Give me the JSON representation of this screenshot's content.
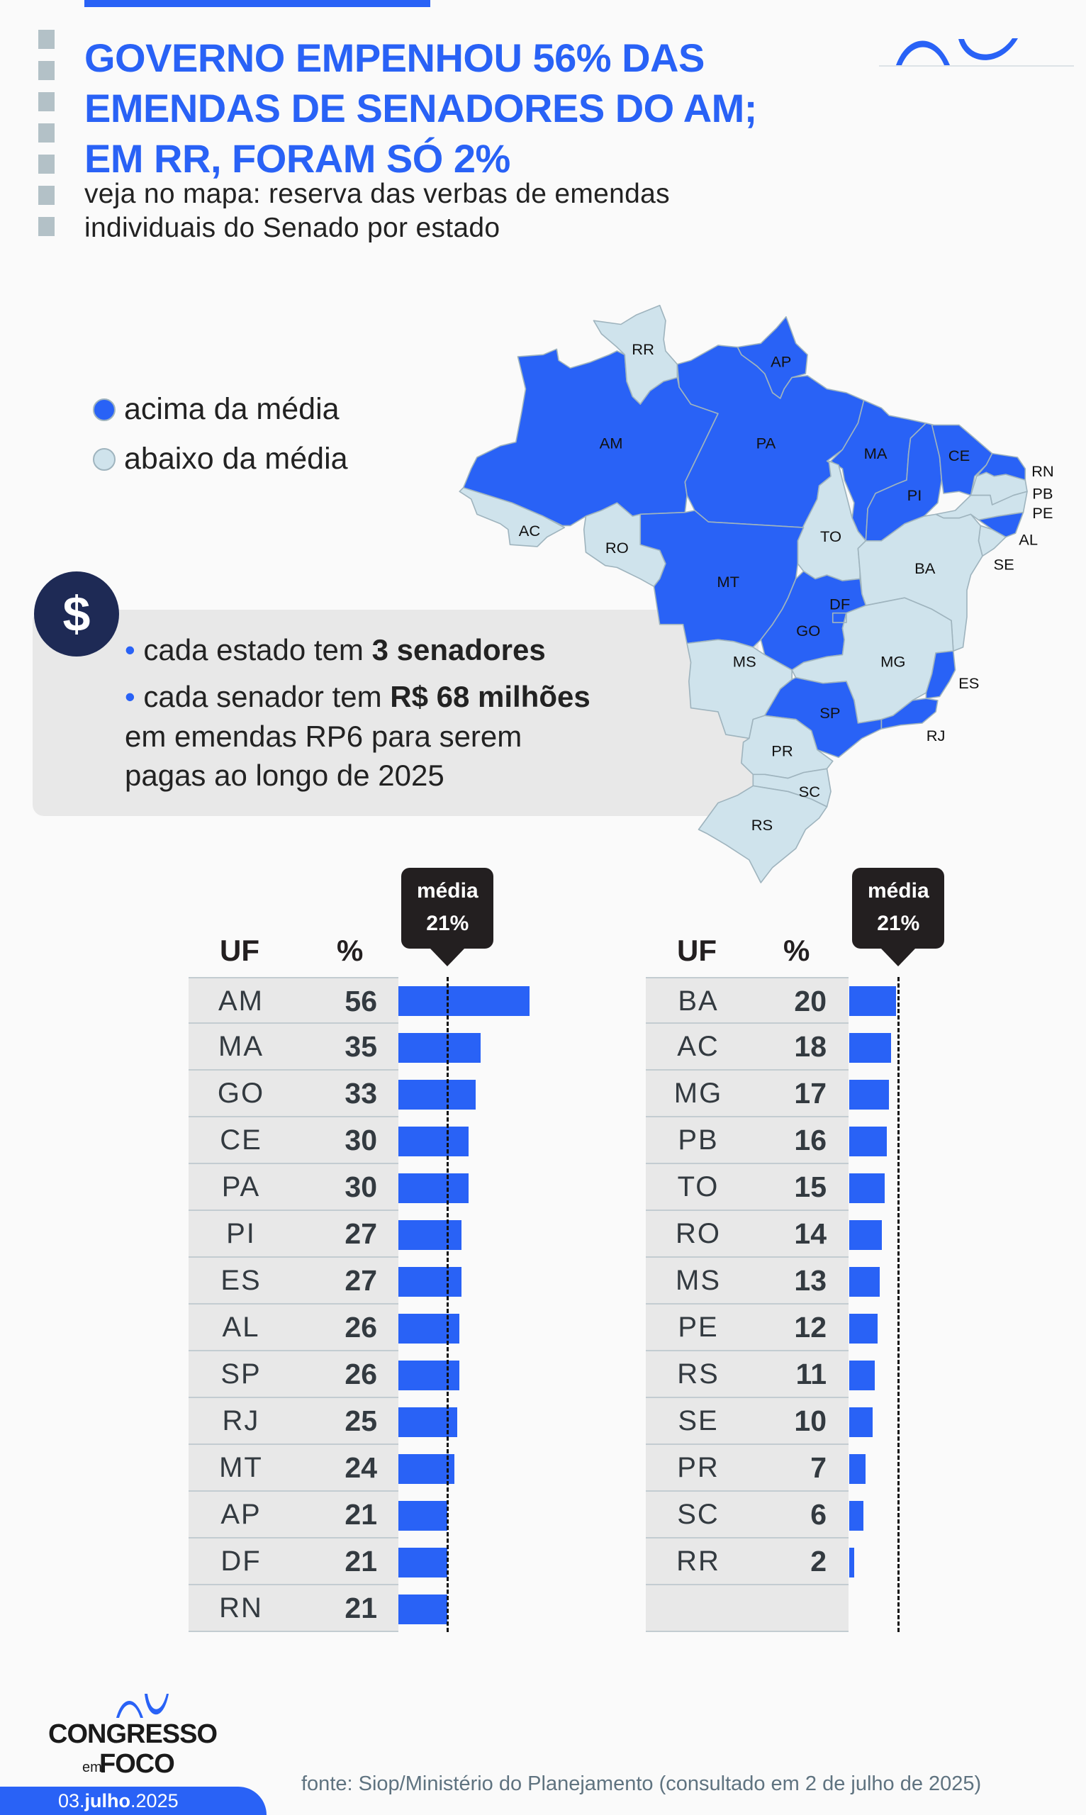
{
  "header": {
    "title_lines": [
      "GOVERNO EMPENHOU 56% DAS",
      "EMENDAS DE SENADORES DO AM;",
      "EM RR, FORAM SÓ 2%"
    ],
    "subtitle_lines": [
      "veja no mapa: reserva das verbas de emendas",
      "individuais do Senado por estado"
    ]
  },
  "legend": {
    "above": {
      "label": "acima da média",
      "color": "#2962f6"
    },
    "below": {
      "label": "abaixo da média",
      "color": "#cfe3ec"
    }
  },
  "info": {
    "icon": "dollar-icon",
    "icon_text": "$",
    "line1_prefix": "cada estado tem ",
    "line1_bold": "3 senadores",
    "line2_prefix": "cada senador tem ",
    "line2_bold": "R$ 68 milhões",
    "line3": "em emendas RP6 para serem",
    "line4": "pagas ao longo de 2025"
  },
  "map": {
    "states": [
      {
        "uf": "AM",
        "above": true
      },
      {
        "uf": "RR",
        "above": false
      },
      {
        "uf": "AP",
        "above": true
      },
      {
        "uf": "PA",
        "above": true
      },
      {
        "uf": "MA",
        "above": true
      },
      {
        "uf": "PI",
        "above": true
      },
      {
        "uf": "CE",
        "above": true
      },
      {
        "uf": "RN",
        "above": true
      },
      {
        "uf": "PB",
        "above": false
      },
      {
        "uf": "PE",
        "above": false
      },
      {
        "uf": "AL",
        "above": true
      },
      {
        "uf": "SE",
        "above": false
      },
      {
        "uf": "AC",
        "above": false
      },
      {
        "uf": "RO",
        "above": false
      },
      {
        "uf": "TO",
        "above": false
      },
      {
        "uf": "BA",
        "above": false
      },
      {
        "uf": "MT",
        "above": true
      },
      {
        "uf": "GO",
        "above": true
      },
      {
        "uf": "DF",
        "above": true
      },
      {
        "uf": "MS",
        "above": false
      },
      {
        "uf": "MG",
        "above": false
      },
      {
        "uf": "ES",
        "above": true
      },
      {
        "uf": "RJ",
        "above": true
      },
      {
        "uf": "SP",
        "above": true
      },
      {
        "uf": "PR",
        "above": false
      },
      {
        "uf": "SC",
        "above": false
      },
      {
        "uf": "RS",
        "above": false
      }
    ]
  },
  "chart_data": {
    "type": "bar",
    "title": "",
    "average": {
      "label": "média",
      "value_label": "21%",
      "value": 21
    },
    "columns": {
      "uf": "UF",
      "pct": "%"
    },
    "tables": [
      {
        "rows": [
          {
            "uf": "AM",
            "value": 56
          },
          {
            "uf": "MA",
            "value": 35
          },
          {
            "uf": "GO",
            "value": 33
          },
          {
            "uf": "CE",
            "value": 30
          },
          {
            "uf": "PA",
            "value": 30
          },
          {
            "uf": "PI",
            "value": 27
          },
          {
            "uf": "ES",
            "value": 27
          },
          {
            "uf": "AL",
            "value": 26
          },
          {
            "uf": "SP",
            "value": 26
          },
          {
            "uf": "RJ",
            "value": 25
          },
          {
            "uf": "MT",
            "value": 24
          },
          {
            "uf": "AP",
            "value": 21
          },
          {
            "uf": "DF",
            "value": 21
          },
          {
            "uf": "RN",
            "value": 21
          }
        ]
      },
      {
        "rows": [
          {
            "uf": "BA",
            "value": 20
          },
          {
            "uf": "AC",
            "value": 18
          },
          {
            "uf": "MG",
            "value": 17
          },
          {
            "uf": "PB",
            "value": 16
          },
          {
            "uf": "TO",
            "value": 15
          },
          {
            "uf": "RO",
            "value": 14
          },
          {
            "uf": "MS",
            "value": 13
          },
          {
            "uf": "PE",
            "value": 12
          },
          {
            "uf": "RS",
            "value": 11
          },
          {
            "uf": "SE",
            "value": 10
          },
          {
            "uf": "PR",
            "value": 7
          },
          {
            "uf": "SC",
            "value": 6
          },
          {
            "uf": "RR",
            "value": 2
          }
        ]
      }
    ],
    "bar_color": "#2962f6"
  },
  "footer": {
    "logo_text": [
      "CONGRESSO",
      "em",
      "FOCO"
    ],
    "date_day": "03.",
    "date_month": "julho",
    "date_year": ".2025",
    "source": "fonte: Siop/Ministério do Planejamento (consultado em 2 de julho de 2025)"
  }
}
